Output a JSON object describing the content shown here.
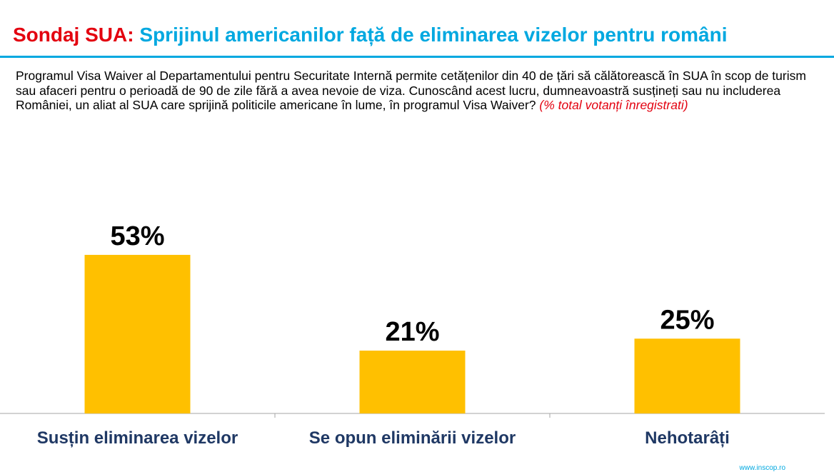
{
  "header": {
    "title_prefix": "Sondaj SUA:",
    "title_main": "Sprijinul americanilor față de eliminarea vizelor pentru români"
  },
  "question": {
    "text": "Programul Visa Waiver al Departamentului pentru Securitate Internă permite cetățenilor din 40 de țări să călătorească în SUA în scop de turism sau afaceri pentru o perioadă de 90 de zile fără a avea nevoie de viza. Cunoscând acest lucru, dumneavoastră susțineți sau nu includerea României, un aliat al SUA care sprijină politicile americane în lume, în programul Visa Waiver?",
    "note": "(% total votanți înregistrati)"
  },
  "footer": {
    "source": "www.inscop.ro"
  },
  "chart_data": {
    "type": "bar",
    "categories": [
      "Susțin eliminarea vizelor",
      "Se opun eliminării vizelor",
      "Nehotarâți"
    ],
    "values": [
      53,
      21,
      25
    ],
    "value_labels": [
      "53%",
      "21%",
      "25%"
    ],
    "bar_color": "#ffc000",
    "category_label_color": "#1f3864",
    "ylim": [
      0,
      100
    ],
    "grid": false,
    "legend": "none"
  }
}
